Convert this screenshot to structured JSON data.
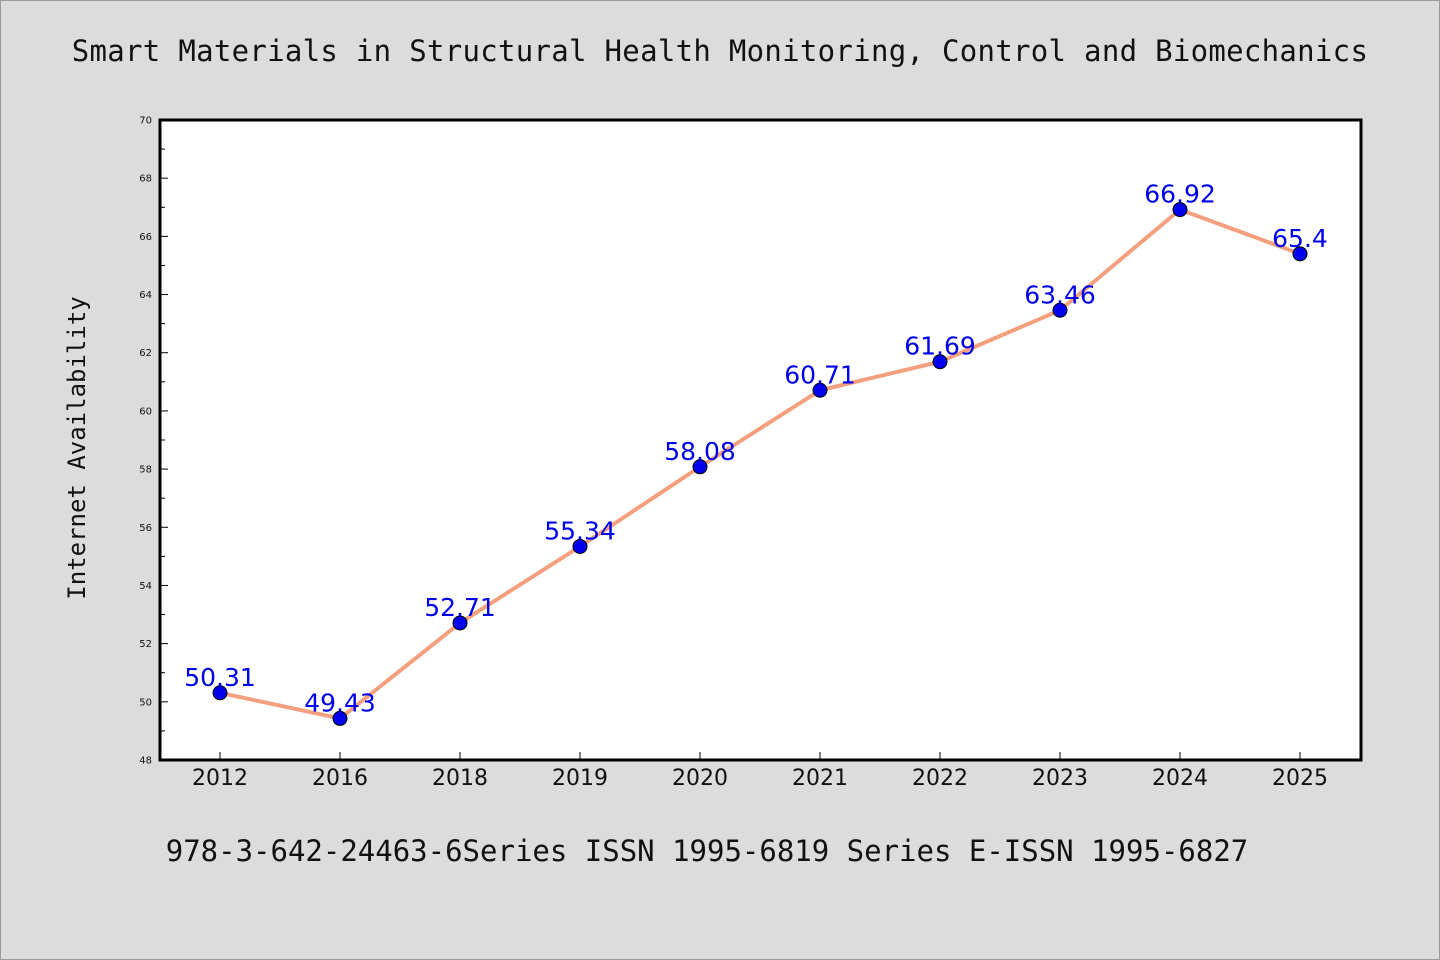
{
  "page": {
    "title": "Smart Materials in Structural Health Monitoring, Control and Biomechanics",
    "footer": "978-3-642-24463-6Series ISSN 1995-6819 Series E-ISSN 1995-6827"
  },
  "chart_data": {
    "type": "line",
    "title": "Smart Materials in Structural Health Monitoring, Control and Biomechanics",
    "xlabel": "",
    "ylabel": "Internet Availability",
    "categories": [
      "2012",
      "2016",
      "2018",
      "2019",
      "2020",
      "2021",
      "2022",
      "2023",
      "2024",
      "2025"
    ],
    "series": [
      {
        "values": [
          50.31,
          49.43,
          52.71,
          55.34,
          58.08,
          60.71,
          61.69,
          63.46,
          66.92,
          65.4
        ]
      }
    ],
    "data_labels": [
      "50.31",
      "49.43",
      "52.71",
      "55.34",
      "58.08",
      "60.71",
      "61.69",
      "63.46",
      "66.92",
      "65.4"
    ],
    "ylim": [
      48,
      70
    ],
    "yticks": [
      48,
      50,
      52,
      54,
      56,
      58,
      60,
      62,
      64,
      66,
      68,
      70
    ],
    "grid": false,
    "legend": "none",
    "colors": {
      "line": "#f4a07f",
      "marker": "#0000ee",
      "label": "#0000ee",
      "background": "#dcdcdc",
      "plot": "#ffffff"
    }
  }
}
